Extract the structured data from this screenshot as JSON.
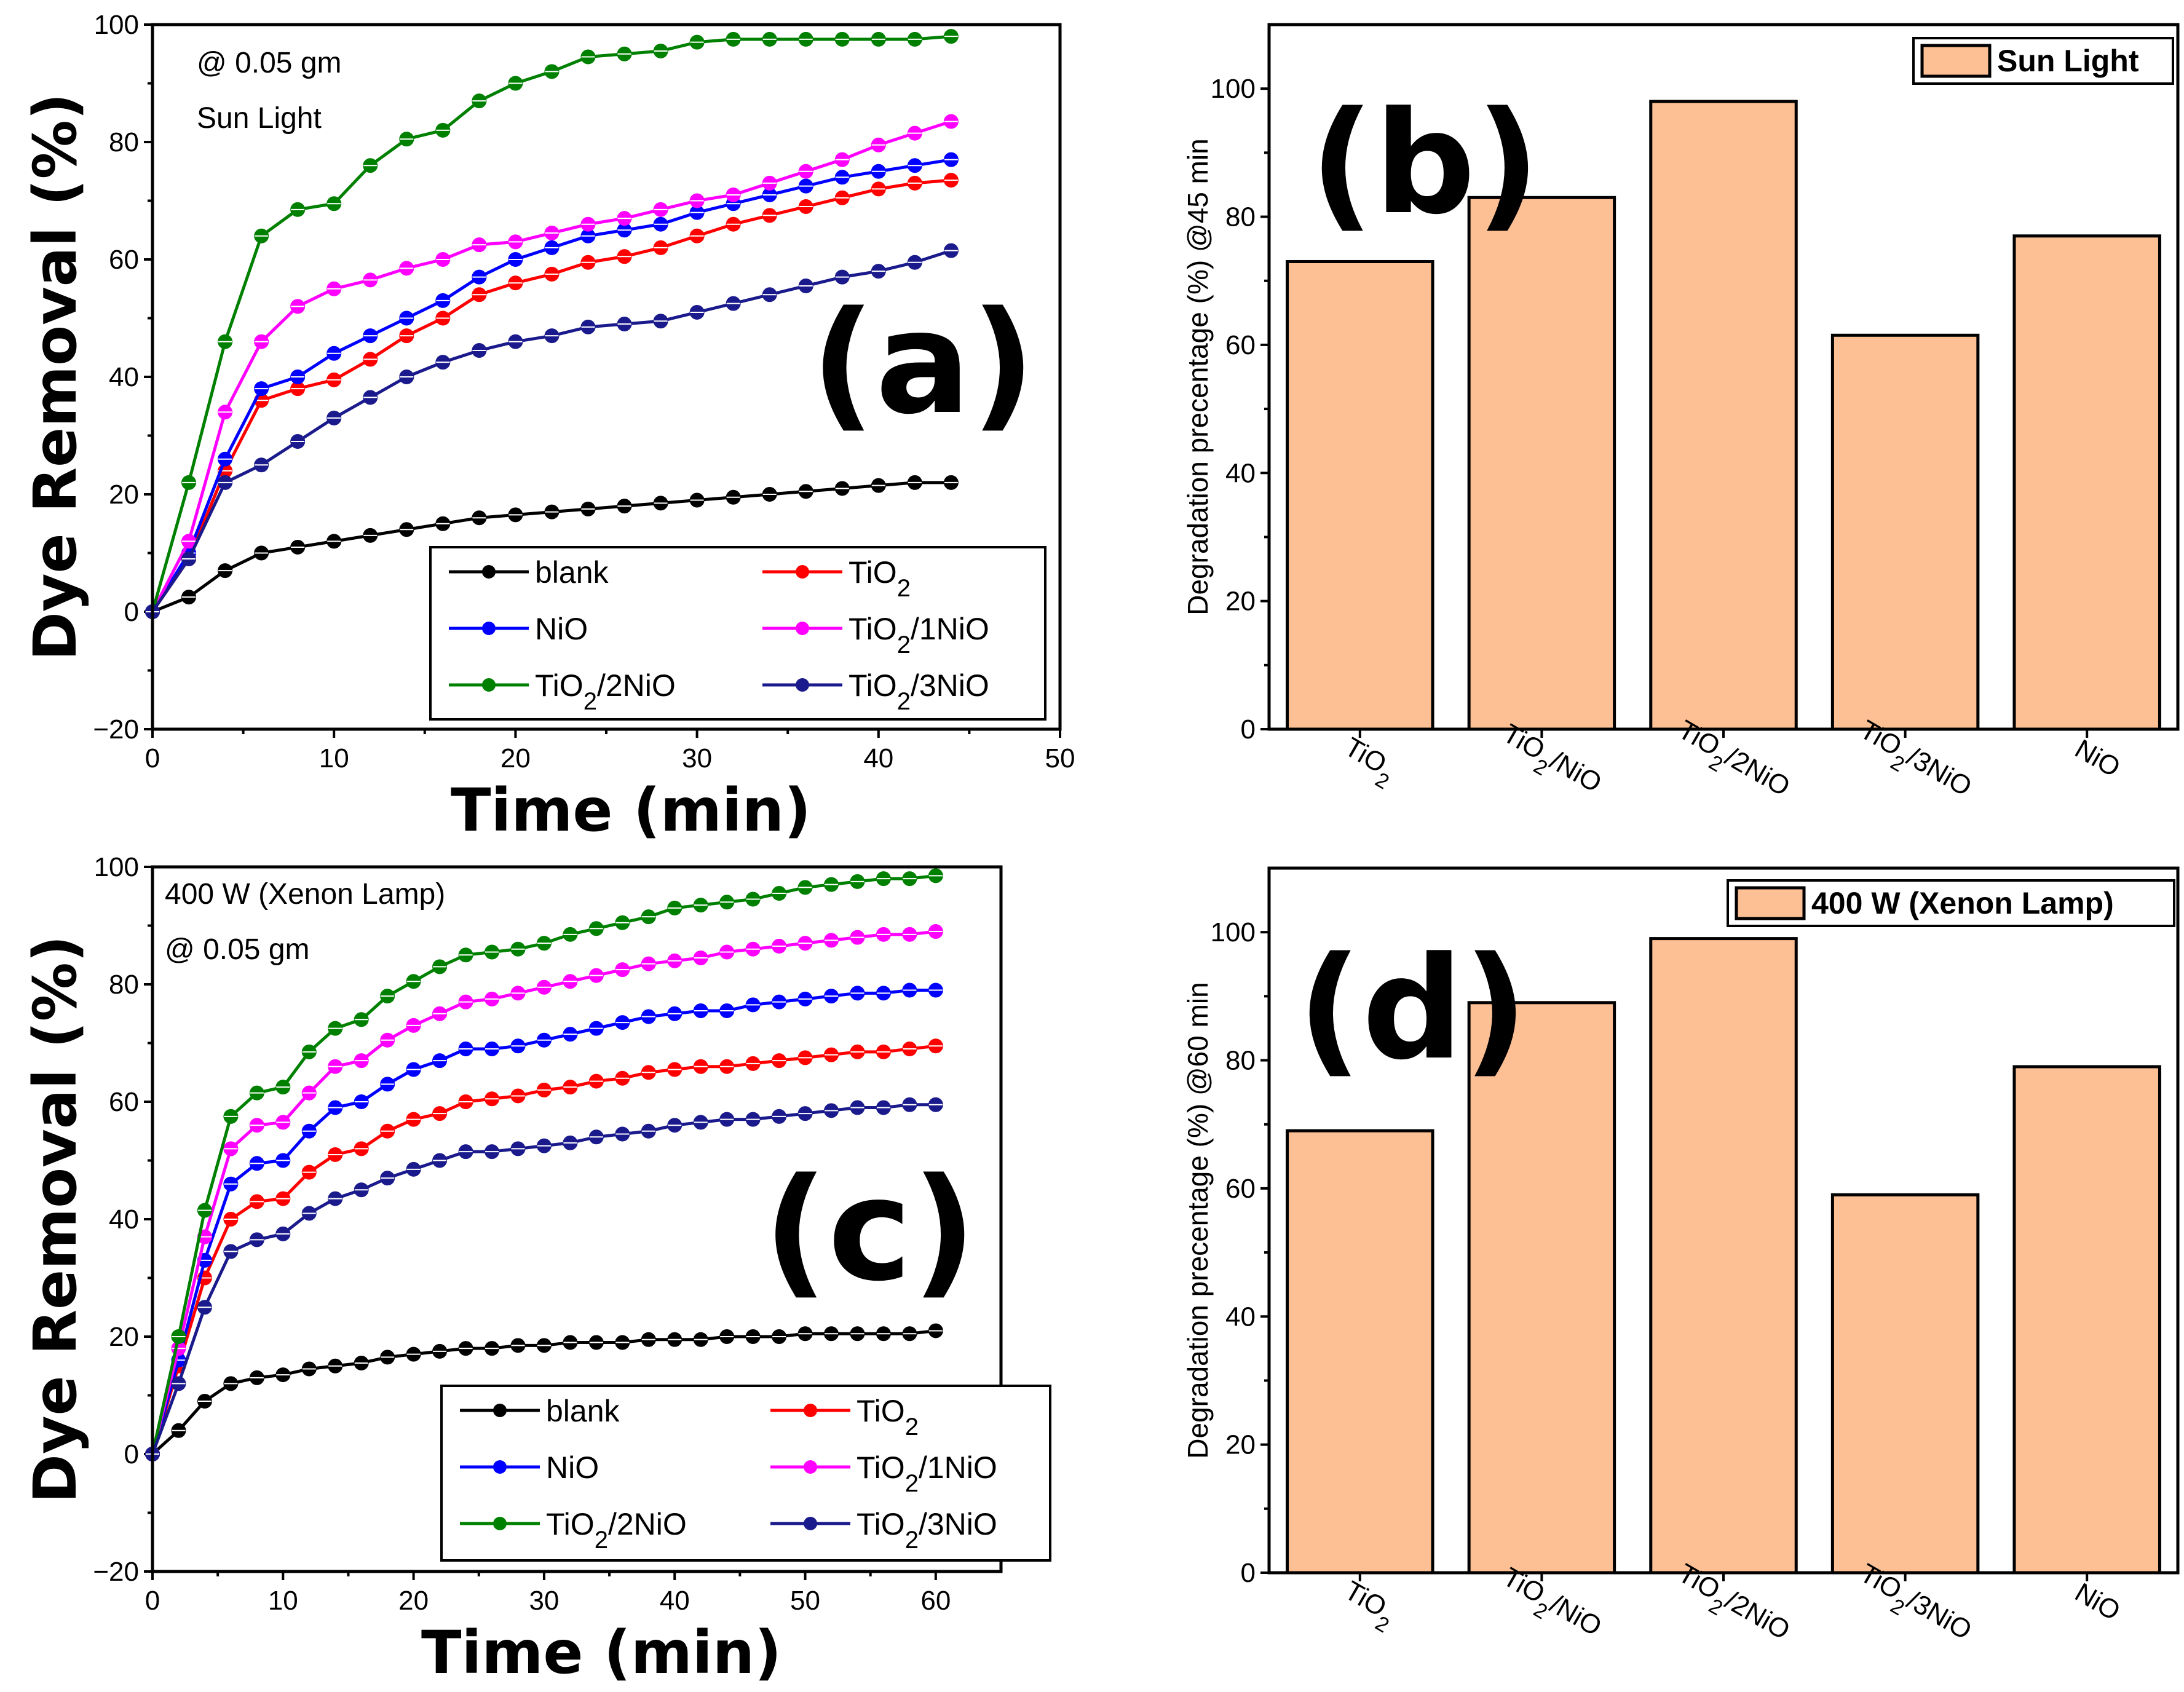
{
  "chart_data": [
    {
      "panel": "a",
      "type": "line",
      "panel_label": "(a)",
      "xlabel": "Time (min)",
      "ylabel": "Dye Removal (%)",
      "xlim": [
        0,
        50
      ],
      "ylim": [
        -20,
        100
      ],
      "xticks": [
        0,
        10,
        20,
        30,
        40,
        50
      ],
      "yticks": [
        -20,
        0,
        20,
        40,
        60,
        80,
        100
      ],
      "annotations": [
        "@ 0.05 gm",
        "Sun Light"
      ],
      "x": [
        0,
        2,
        4,
        6,
        8,
        10,
        12,
        14,
        16,
        18,
        20,
        22,
        24,
        26,
        28,
        30,
        32,
        34,
        36,
        38,
        40,
        42,
        44
      ],
      "series": [
        {
          "name": "blank",
          "label_main": "blank",
          "label_sub": "",
          "label_rest": "",
          "color": "#000000",
          "values": [
            0,
            2.5,
            7,
            10,
            11,
            12,
            13,
            14,
            15,
            16,
            16.5,
            17,
            17.5,
            18,
            18.5,
            19,
            19.5,
            20,
            20.5,
            21,
            21.5,
            22,
            22
          ]
        },
        {
          "name": "TiO2",
          "label_main": "TiO",
          "label_sub": "2",
          "label_rest": "",
          "color": "#FF0000",
          "values": [
            0,
            9,
            24,
            36,
            38,
            39.5,
            43,
            47,
            50,
            54,
            56,
            57.5,
            59.5,
            60.5,
            62,
            64,
            66,
            67.5,
            69,
            70.5,
            72,
            73,
            73.5
          ]
        },
        {
          "name": "NiO",
          "label_main": "NiO",
          "label_sub": "",
          "label_rest": "",
          "color": "#0000FF",
          "values": [
            0,
            10,
            26,
            38,
            40,
            44,
            47,
            50,
            53,
            57,
            60,
            62,
            64,
            65,
            66,
            68,
            69.5,
            71,
            72.5,
            74,
            75,
            76,
            77
          ]
        },
        {
          "name": "TiO2/1NiO",
          "label_main": "TiO",
          "label_sub": "2",
          "label_rest": "/1NiO",
          "color": "#FF00FF",
          "values": [
            0,
            12,
            34,
            46,
            52,
            55,
            56.5,
            58.5,
            60,
            62.5,
            63,
            64.5,
            66,
            67,
            68.5,
            70,
            71,
            73,
            75,
            77,
            79.5,
            81.5,
            83.5
          ]
        },
        {
          "name": "TiO2/2NiO",
          "label_main": "TiO",
          "label_sub": "2",
          "label_rest": "/2NiO",
          "color": "#008000",
          "values": [
            0,
            22,
            46,
            64,
            68.5,
            69.5,
            76,
            80.5,
            82,
            87,
            90,
            92,
            94.5,
            95,
            95.5,
            97,
            97.5,
            97.5,
            97.5,
            97.5,
            97.5,
            97.5,
            98
          ]
        },
        {
          "name": "TiO2/3NiO",
          "label_main": "TiO",
          "label_sub": "2",
          "label_rest": "/3NiO",
          "color": "#1A1A8C",
          "values": [
            0,
            9,
            22,
            25,
            29,
            33,
            36.5,
            40,
            42.5,
            44.5,
            46,
            47,
            48.5,
            49,
            49.5,
            51,
            52.5,
            54,
            55.5,
            57,
            58,
            59.5,
            61.5
          ]
        }
      ]
    },
    {
      "panel": "b",
      "type": "bar",
      "panel_label": "(b)",
      "ylabel": "Degradation precentage (%) @45 min",
      "legend": "Sun Light",
      "ylim": [
        0,
        110
      ],
      "yticks": [
        0,
        20,
        40,
        60,
        80,
        100
      ],
      "categories": [
        {
          "main": "TiO",
          "sub": "2",
          "rest": ""
        },
        {
          "main": "TiO",
          "sub": "2",
          "rest": "/NiO"
        },
        {
          "main": "TiO",
          "sub": "2",
          "rest": "/2NiO"
        },
        {
          "main": "TiO",
          "sub": "2",
          "rest": "/3NiO"
        },
        {
          "main": "NiO",
          "sub": "",
          "rest": ""
        }
      ],
      "values": [
        73,
        83,
        98,
        61.5,
        77
      ]
    },
    {
      "panel": "c",
      "type": "line",
      "panel_label": "(c)",
      "xlabel": "Time (min)",
      "ylabel": "Dye Removal (%)",
      "xlim": [
        0,
        65
      ],
      "ylim": [
        -20,
        100
      ],
      "xticks": [
        0,
        10,
        20,
        30,
        40,
        50,
        60
      ],
      "yticks": [
        -20,
        0,
        20,
        40,
        60,
        80,
        100
      ],
      "annotations": [
        "400 W (Xenon Lamp)",
        "@ 0.05 gm"
      ],
      "x": [
        0,
        2,
        4,
        6,
        8,
        10,
        12,
        14,
        16,
        18,
        20,
        22,
        24,
        26,
        28,
        30,
        32,
        34,
        36,
        38,
        40,
        42,
        44,
        46,
        48,
        50,
        52,
        54,
        56,
        58,
        60
      ],
      "series": [
        {
          "name": "blank",
          "label_main": "blank",
          "label_sub": "",
          "label_rest": "",
          "color": "#000000",
          "values": [
            0,
            4,
            9,
            12,
            13,
            13.5,
            14.5,
            15,
            15.5,
            16.5,
            17,
            17.5,
            18,
            18,
            18.5,
            18.5,
            19,
            19,
            19,
            19.5,
            19.5,
            19.5,
            20,
            20,
            20,
            20.5,
            20.5,
            20.5,
            20.5,
            20.5,
            21
          ]
        },
        {
          "name": "TiO2",
          "label_main": "TiO",
          "label_sub": "2",
          "label_rest": "",
          "color": "#FF0000",
          "values": [
            0,
            15,
            30,
            40,
            43,
            43.5,
            48,
            51,
            52,
            55,
            57,
            58,
            60,
            60.5,
            61,
            62,
            62.5,
            63.5,
            64,
            65,
            65.5,
            66,
            66,
            66.5,
            67,
            67.5,
            68,
            68.5,
            68.5,
            69,
            69.5
          ]
        },
        {
          "name": "NiO",
          "label_main": "NiO",
          "label_sub": "",
          "label_rest": "",
          "color": "#0000FF",
          "values": [
            0,
            16,
            33,
            46,
            49.5,
            50,
            55,
            59,
            60,
            63,
            65.5,
            67,
            69,
            69,
            69.5,
            70.5,
            71.5,
            72.5,
            73.5,
            74.5,
            75,
            75.5,
            75.5,
            76.5,
            77,
            77.5,
            78,
            78.5,
            78.5,
            79,
            79
          ]
        },
        {
          "name": "TiO2/1NiO",
          "label_main": "TiO",
          "label_sub": "2",
          "label_rest": "/1NiO",
          "color": "#FF00FF",
          "values": [
            0,
            18,
            37,
            52,
            56,
            56.5,
            61.5,
            66,
            67,
            70.5,
            73,
            75,
            77,
            77.5,
            78.5,
            79.5,
            80.5,
            81.5,
            82.5,
            83.5,
            84,
            84.5,
            85.5,
            86,
            86.5,
            87,
            87.5,
            88,
            88.5,
            88.5,
            89
          ]
        },
        {
          "name": "TiO2/2NiO",
          "label_main": "TiO",
          "label_sub": "2",
          "label_rest": "/2NiO",
          "color": "#008000",
          "values": [
            0,
            20,
            41.5,
            57.5,
            61.5,
            62.5,
            68.5,
            72.5,
            74,
            78,
            80.5,
            83,
            85,
            85.5,
            86,
            87,
            88.5,
            89.5,
            90.5,
            91.5,
            93,
            93.5,
            94,
            94.5,
            95.5,
            96.5,
            97,
            97.5,
            98,
            98,
            98.5
          ]
        },
        {
          "name": "TiO2/3NiO",
          "label_main": "TiO",
          "label_sub": "2",
          "label_rest": "/3NiO",
          "color": "#1A1A8C",
          "values": [
            0,
            12,
            25,
            34.5,
            36.5,
            37.5,
            41,
            43.5,
            45,
            47,
            48.5,
            50,
            51.5,
            51.5,
            52,
            52.5,
            53,
            54,
            54.5,
            55,
            56,
            56.5,
            57,
            57,
            57.5,
            58,
            58.5,
            59,
            59,
            59.5,
            59.5
          ]
        }
      ]
    },
    {
      "panel": "d",
      "type": "bar",
      "panel_label": "(d)",
      "ylabel": "Degradation precentage (%) @60 min",
      "legend": "400 W (Xenon Lamp)",
      "ylim": [
        0,
        110
      ],
      "yticks": [
        0,
        20,
        40,
        60,
        80,
        100
      ],
      "categories": [
        {
          "main": "TiO",
          "sub": "2",
          "rest": ""
        },
        {
          "main": "TiO",
          "sub": "2",
          "rest": "/NiO"
        },
        {
          "main": "TiO",
          "sub": "2",
          "rest": "/2NiO"
        },
        {
          "main": "TiO",
          "sub": "2",
          "rest": "/3NiO"
        },
        {
          "main": "NiO",
          "sub": "",
          "rest": ""
        }
      ],
      "values": [
        69,
        89,
        99,
        59,
        79
      ]
    }
  ]
}
